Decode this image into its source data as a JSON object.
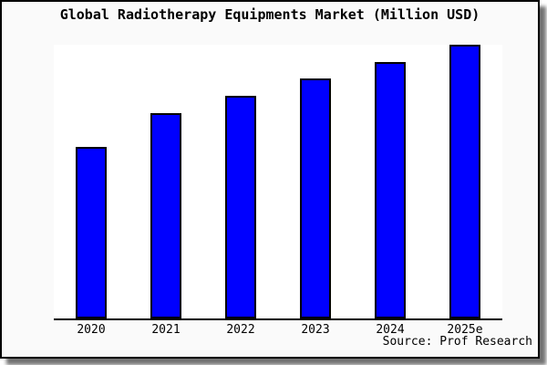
{
  "chart_data": {
    "type": "bar",
    "title": "Global Radiotherapy Equipments Market (Million USD)",
    "categories": [
      "2020",
      "2021",
      "2022",
      "2023",
      "2024",
      "2025e"
    ],
    "values": [
      62.7,
      75.0,
      81.3,
      87.7,
      93.7,
      100.0
    ],
    "values_unit": "percent of tallest bar (no y-axis scale shown in chart)",
    "xlabel": "",
    "ylabel": "",
    "ylim": [
      0,
      100
    ],
    "y_axis_labels_visible": false,
    "grid": false,
    "legend": "none",
    "source": "Source: Prof Research",
    "bar_color": "#0000ff",
    "bar_border_color": "#000000"
  },
  "colors": {
    "page_background": "#fafafa",
    "plot_background": "#ffffff",
    "frame_border": "#000000",
    "axis_line": "#000000",
    "text": "#000000"
  }
}
